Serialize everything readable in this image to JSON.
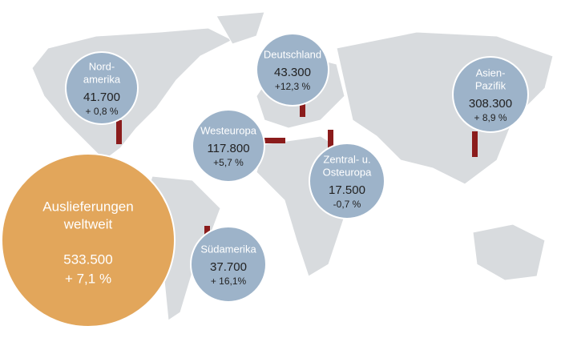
{
  "total": {
    "label": [
      "Auslieferungen",
      "weltweit"
    ],
    "value": "533.500",
    "change": "+ 7,1 %"
  },
  "regions": [
    {
      "label": [
        "Nord-",
        "amerika"
      ],
      "value": "41.700",
      "change": "+ 0,8 %"
    },
    {
      "label": [
        "Deutschland"
      ],
      "value": "43.300",
      "change": "+12,3 %"
    },
    {
      "label": [
        "Asien-",
        "Pazifik"
      ],
      "value": "308.300",
      "change": "+ 8,9 %"
    },
    {
      "label": [
        "Westeuropa"
      ],
      "value": "117.800",
      "change": "+5,7 %"
    },
    {
      "label": [
        "Zentral- u.",
        "Osteuropa"
      ],
      "value": "17.500",
      "change": "-0,7 %"
    },
    {
      "label": [
        "Südamerika"
      ],
      "value": "37.700",
      "change": "+ 16,1%"
    }
  ]
}
